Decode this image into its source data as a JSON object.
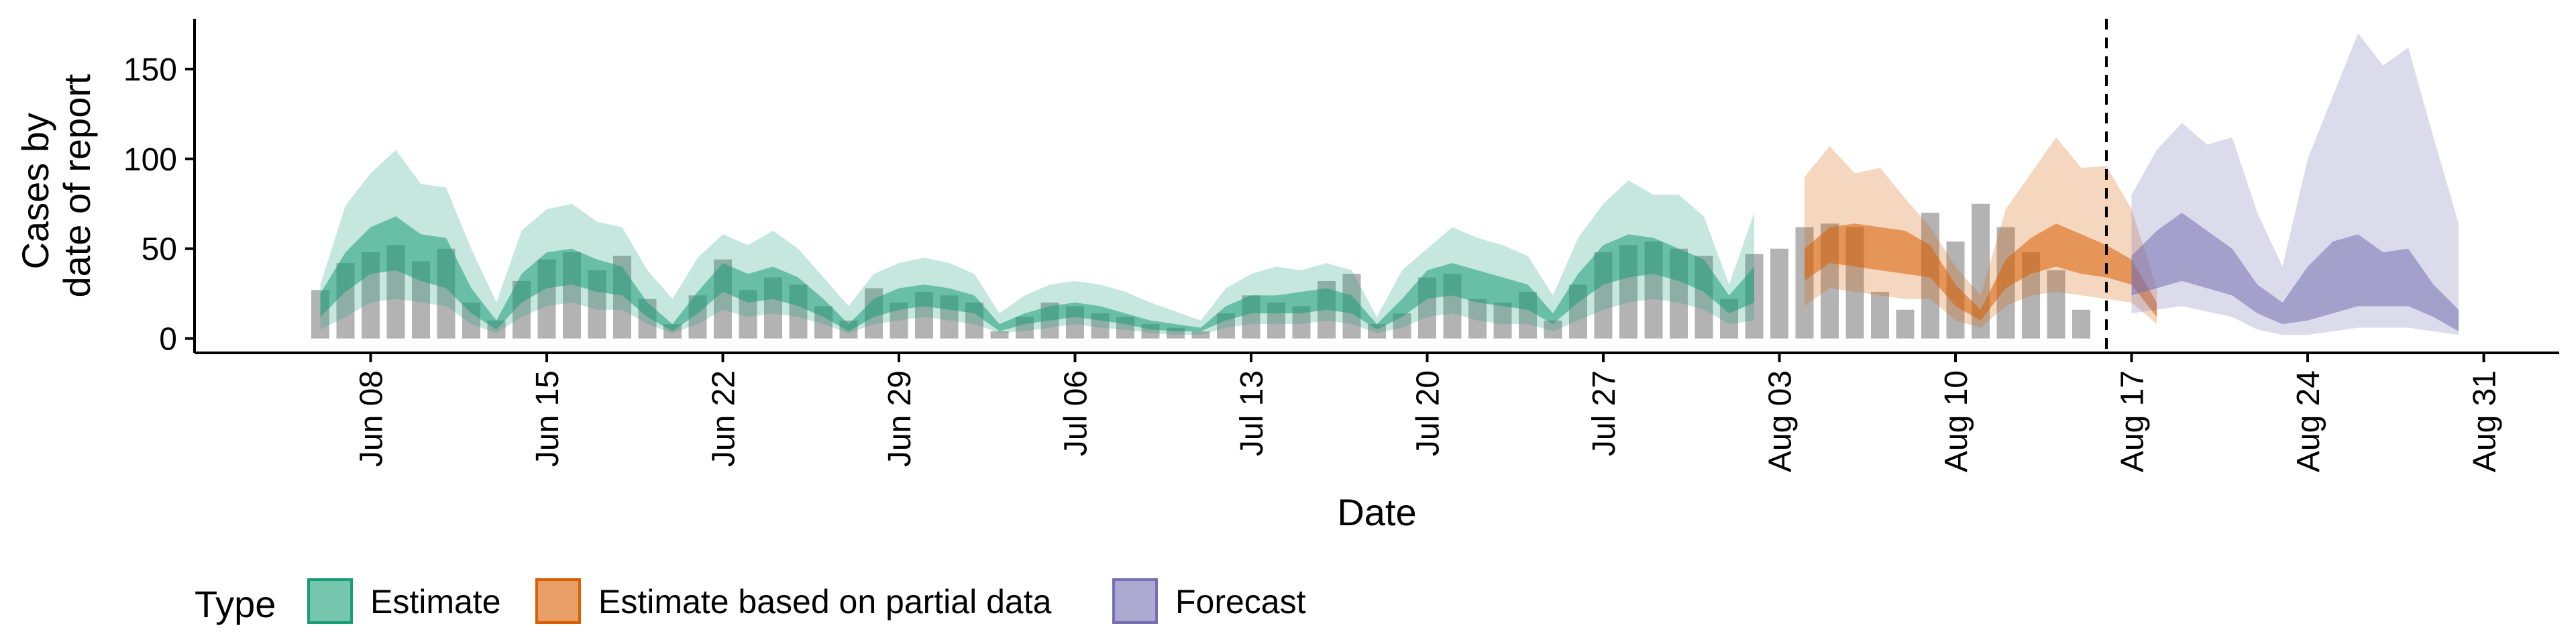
{
  "chart_data": {
    "type": "area",
    "xlabel": "Date",
    "ylabel_lines": [
      "Cases by",
      "date of report"
    ],
    "x_range": [
      "2020-06-01",
      "2020-09-03"
    ],
    "ylim": [
      -8,
      178
    ],
    "y_ticks": [
      0,
      50,
      100,
      150
    ],
    "x_ticks": [
      {
        "date": "2020-06-08",
        "label": "Jun 08"
      },
      {
        "date": "2020-06-15",
        "label": "Jun 15"
      },
      {
        "date": "2020-06-22",
        "label": "Jun 22"
      },
      {
        "date": "2020-06-29",
        "label": "Jun 29"
      },
      {
        "date": "2020-07-06",
        "label": "Jul 06"
      },
      {
        "date": "2020-07-13",
        "label": "Jul 13"
      },
      {
        "date": "2020-07-20",
        "label": "Jul 20"
      },
      {
        "date": "2020-07-27",
        "label": "Jul 27"
      },
      {
        "date": "2020-08-03",
        "label": "Aug 03"
      },
      {
        "date": "2020-08-10",
        "label": "Aug 10"
      },
      {
        "date": "2020-08-17",
        "label": "Aug 17"
      },
      {
        "date": "2020-08-24",
        "label": "Aug 24"
      },
      {
        "date": "2020-08-31",
        "label": "Aug 31"
      }
    ],
    "forecast_date": "2020-08-16",
    "bars": {
      "start_date": "2020-06-06",
      "color": "#b3b3b3",
      "values": [
        27,
        42,
        48,
        52,
        43,
        50,
        20,
        10,
        32,
        44,
        48,
        38,
        46,
        22,
        8,
        24,
        44,
        27,
        34,
        30,
        18,
        10,
        28,
        20,
        26,
        24,
        20,
        4,
        12,
        20,
        18,
        14,
        12,
        8,
        6,
        4,
        14,
        24,
        20,
        18,
        32,
        36,
        8,
        14,
        34,
        36,
        22,
        20,
        26,
        10,
        30,
        48,
        52,
        54,
        50,
        46,
        22,
        47,
        50,
        62,
        64,
        62,
        26,
        16,
        70,
        54,
        75,
        62,
        48,
        38,
        16
      ]
    },
    "series": [
      {
        "name": "Estimate",
        "color": "#1b9e77",
        "start_date": "2020-06-06",
        "lower90": [
          5,
          12,
          20,
          22,
          20,
          18,
          8,
          3,
          12,
          18,
          20,
          16,
          16,
          8,
          3,
          8,
          16,
          12,
          14,
          12,
          8,
          3,
          8,
          10,
          12,
          10,
          8,
          3,
          4,
          6,
          8,
          6,
          5,
          3,
          2,
          2,
          6,
          8,
          8,
          8,
          10,
          8,
          3,
          6,
          12,
          14,
          10,
          8,
          8,
          4,
          10,
          16,
          20,
          22,
          20,
          16,
          8,
          10
        ],
        "lower50": [
          12,
          26,
          36,
          38,
          32,
          28,
          14,
          5,
          20,
          28,
          30,
          26,
          24,
          12,
          4,
          14,
          26,
          20,
          22,
          18,
          12,
          4,
          12,
          16,
          18,
          16,
          14,
          4,
          8,
          10,
          12,
          10,
          8,
          5,
          4,
          4,
          10,
          14,
          14,
          14,
          16,
          14,
          5,
          12,
          22,
          24,
          20,
          18,
          16,
          8,
          20,
          30,
          34,
          36,
          32,
          26,
          14,
          20
        ],
        "upper50": [
          25,
          48,
          62,
          68,
          58,
          56,
          28,
          10,
          36,
          48,
          50,
          44,
          40,
          20,
          8,
          26,
          42,
          36,
          40,
          34,
          22,
          8,
          22,
          28,
          30,
          28,
          24,
          8,
          14,
          18,
          20,
          18,
          14,
          10,
          8,
          6,
          18,
          24,
          24,
          26,
          28,
          24,
          8,
          22,
          38,
          42,
          38,
          34,
          30,
          14,
          36,
          52,
          58,
          56,
          50,
          44,
          24,
          40
        ],
        "upper90": [
          30,
          74,
          92,
          105,
          86,
          84,
          50,
          20,
          60,
          72,
          75,
          65,
          62,
          38,
          22,
          45,
          58,
          52,
          60,
          50,
          34,
          18,
          36,
          42,
          45,
          42,
          36,
          14,
          24,
          30,
          32,
          30,
          26,
          20,
          15,
          10,
          28,
          36,
          40,
          38,
          42,
          38,
          12,
          38,
          50,
          62,
          56,
          52,
          46,
          24,
          56,
          75,
          88,
          80,
          80,
          68,
          30,
          70
        ]
      },
      {
        "name": "Estimate based on partial data",
        "color": "#d95f02",
        "start_date": "2020-08-04",
        "lower90": [
          18,
          28,
          26,
          24,
          22,
          22,
          10,
          6,
          18,
          24,
          26,
          24,
          22,
          20,
          8
        ],
        "lower50": [
          32,
          42,
          40,
          38,
          36,
          34,
          18,
          10,
          28,
          36,
          40,
          36,
          34,
          30,
          12
        ],
        "upper50": [
          50,
          62,
          64,
          62,
          60,
          52,
          30,
          16,
          44,
          56,
          64,
          58,
          52,
          44,
          20
        ],
        "upper90": [
          90,
          107,
          92,
          95,
          78,
          62,
          40,
          24,
          72,
          92,
          112,
          95,
          96,
          72,
          28
        ]
      },
      {
        "name": "Forecast",
        "color": "#7570b3",
        "start_date": "2020-08-17",
        "lower90": [
          14,
          16,
          18,
          15,
          12,
          5,
          2,
          2,
          4,
          6,
          6,
          6,
          4,
          2
        ],
        "lower50": [
          24,
          28,
          32,
          28,
          24,
          14,
          8,
          10,
          14,
          18,
          18,
          18,
          12,
          4
        ],
        "upper50": [
          46,
          60,
          70,
          60,
          50,
          30,
          20,
          40,
          54,
          58,
          48,
          50,
          30,
          16
        ],
        "upper90": [
          80,
          105,
          120,
          108,
          112,
          70,
          40,
          100,
          135,
          170,
          152,
          162,
          112,
          64
        ]
      }
    ],
    "legend": {
      "title": "Type",
      "position": "bottom",
      "items": [
        "Estimate",
        "Estimate based on partial data",
        "Forecast"
      ]
    }
  }
}
